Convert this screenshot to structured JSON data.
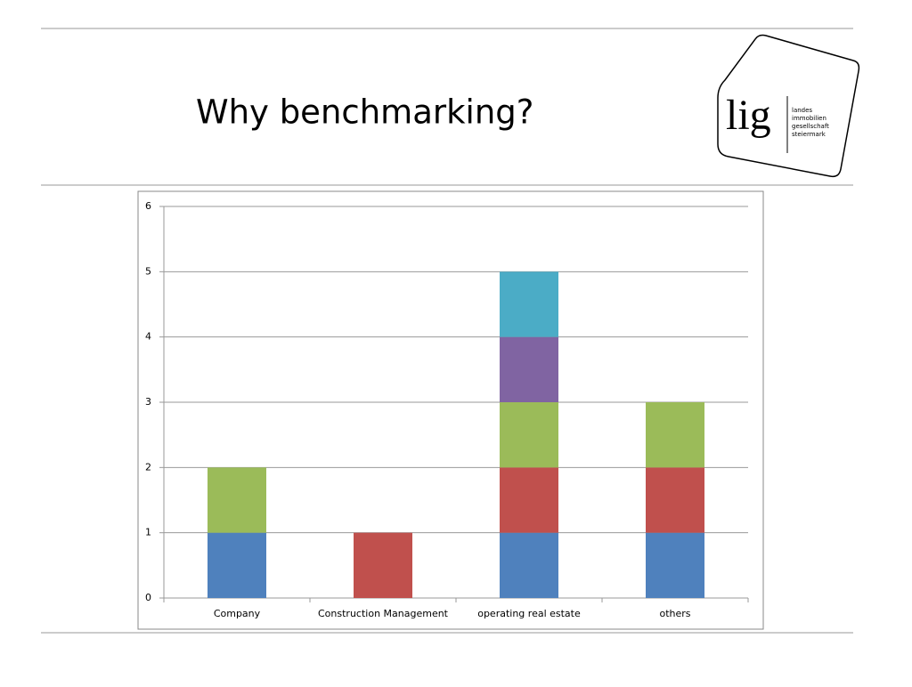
{
  "slide": {
    "title": "Why benchmarking?",
    "logo": {
      "mark": "lig",
      "lines": [
        "landes",
        "immobilien",
        "gesellschaft",
        "steiermark"
      ]
    }
  },
  "chart_data": {
    "type": "stacked_bar",
    "categories": [
      "Company",
      "Construction Management",
      "operating real estate",
      "others"
    ],
    "series": [
      {
        "color": "#4f81bd",
        "values": [
          1,
          0,
          1,
          1
        ]
      },
      {
        "color": "#c0504d",
        "values": [
          0,
          1,
          1,
          1
        ]
      },
      {
        "color": "#9bbb59",
        "values": [
          1,
          0,
          1,
          1
        ]
      },
      {
        "color": "#8064a2",
        "values": [
          0,
          0,
          1,
          0
        ]
      },
      {
        "color": "#4bacc6",
        "values": [
          0,
          0,
          1,
          0
        ]
      }
    ],
    "ylim": [
      0,
      6
    ],
    "yticks": [
      0,
      1,
      2,
      3,
      4,
      5,
      6
    ],
    "grid": true
  }
}
